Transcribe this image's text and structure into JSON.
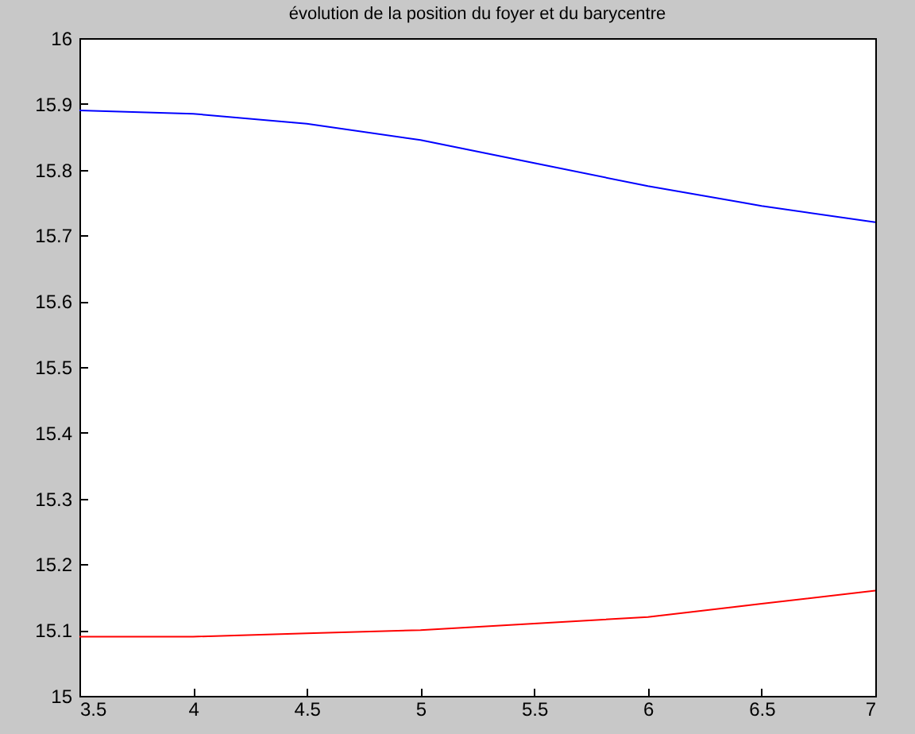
{
  "chart_data": {
    "type": "line",
    "title": "évolution de la position du foyer et du barycentre",
    "x": [
      3.5,
      4,
      4.5,
      5,
      5.5,
      6,
      6.5,
      7
    ],
    "series": [
      {
        "color": "#0000ff",
        "values": [
          15.89,
          15.885,
          15.87,
          15.845,
          15.81,
          15.775,
          15.745,
          15.72
        ]
      },
      {
        "color": "#ff0000",
        "values": [
          15.09,
          15.09,
          15.095,
          15.1,
          15.11,
          15.12,
          15.14,
          15.16
        ]
      }
    ],
    "xlim": [
      3.5,
      7
    ],
    "xticks": [
      3.5,
      4,
      4.5,
      5,
      5.5,
      6,
      6.5,
      7
    ],
    "ylim": [
      15,
      16
    ],
    "yticks": [
      15,
      15.1,
      15.2,
      15.3,
      15.4,
      15.5,
      15.6,
      15.7,
      15.8,
      15.9,
      16
    ],
    "grid": false,
    "marker": "none",
    "line_style": "solid"
  }
}
